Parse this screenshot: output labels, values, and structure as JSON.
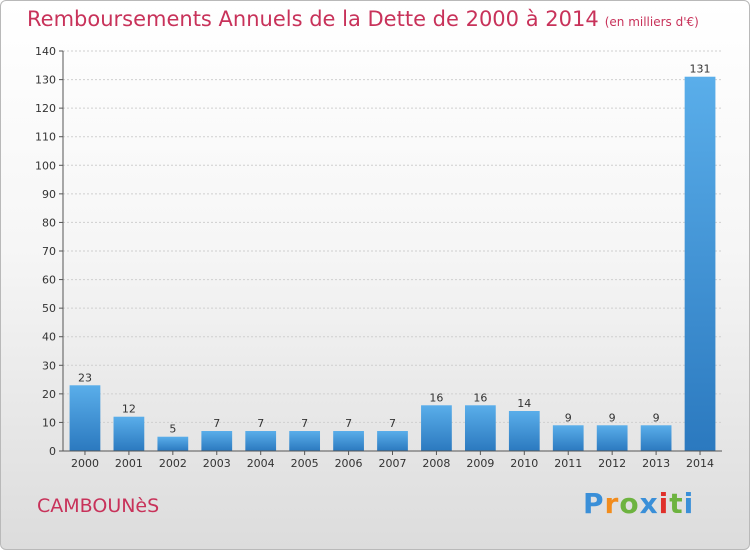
{
  "title": "Remboursements Annuels de la Dette de 2000 à 2014",
  "unit": "(en milliers d'€)",
  "place": "CAMBOUNèS",
  "logo": {
    "letters": [
      "P",
      "r",
      "o",
      "x",
      "i",
      "t",
      "i"
    ],
    "colors": [
      "#3a8fd8",
      "#f28c1c",
      "#6db33f",
      "#3a8fd8",
      "#e0302a",
      "#6db33f",
      "#3a8fd8"
    ]
  },
  "chart_data": {
    "type": "bar",
    "title": "Remboursements Annuels de la Dette de 2000 à 2014",
    "categories": [
      "2000",
      "2001",
      "2002",
      "2003",
      "2004",
      "2005",
      "2006",
      "2007",
      "2008",
      "2009",
      "2010",
      "2011",
      "2012",
      "2013",
      "2014"
    ],
    "values": [
      23,
      12,
      5,
      7,
      7,
      7,
      7,
      7,
      16,
      16,
      14,
      9,
      9,
      9,
      131
    ],
    "ylim": [
      0,
      140
    ],
    "yticks": [
      0,
      10,
      20,
      30,
      40,
      50,
      60,
      70,
      80,
      90,
      100,
      110,
      120,
      130,
      140
    ],
    "grid": true,
    "bar_color": "#3d8fd6"
  }
}
